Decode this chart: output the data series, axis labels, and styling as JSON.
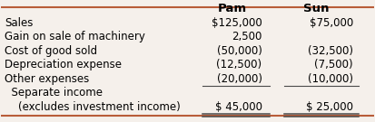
{
  "col_headers": [
    "Pam",
    "Sun"
  ],
  "rows": [
    {
      "label": "Sales",
      "pam": "$125,000",
      "sun": "$75,000",
      "indent": 0
    },
    {
      "label": "Gain on sale of machinery",
      "pam": "2,500",
      "sun": "",
      "indent": 0
    },
    {
      "label": "Cost of good sold",
      "pam": "(50,000)",
      "sun": "(32,500)",
      "indent": 0
    },
    {
      "label": "Depreciation expense",
      "pam": "(12,500)",
      "sun": "(7,500)",
      "indent": 0
    },
    {
      "label": "Other expenses",
      "pam": "(20,000)",
      "sun": "(10,000)",
      "indent": 0
    },
    {
      "label": "  Separate income",
      "pam": "",
      "sun": "",
      "indent": 0
    },
    {
      "label": "    (excludes investment income)",
      "pam": "$ 45,000",
      "sun": "$ 25,000",
      "indent": 0
    }
  ],
  "header_line_color": "#b85c38",
  "double_underline_color": "#4a4a4a",
  "single_underline_color": "#4a4a4a",
  "bg_color": "#f5f0eb",
  "font_size": 8.5,
  "header_font_size": 9.5
}
